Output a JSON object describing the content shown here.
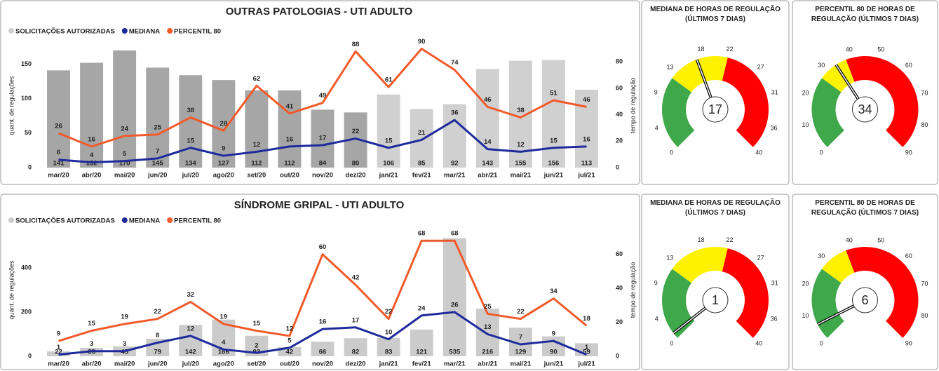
{
  "chart_data": [
    {
      "type": "combo",
      "title": "OUTRAS PATOLOGIAS - UTI ADULTO",
      "y_label": "quant. de regulações",
      "y2_label": "tempo de regulação",
      "categories": [
        "mar/20",
        "abr/20",
        "mai/20",
        "jun/20",
        "jul/20",
        "ago/20",
        "set/20",
        "out/20",
        "nov/20",
        "dez/20",
        "jan/21",
        "fev/21",
        "mar/21",
        "abr/21",
        "mai/21",
        "jun/21",
        "jul/21"
      ],
      "ylim": [
        0,
        180
      ],
      "yticks": [
        0,
        50,
        100,
        150
      ],
      "y2lim": [
        0,
        94
      ],
      "y2ticks": [
        0,
        20,
        40,
        60,
        80
      ],
      "series": [
        {
          "name": "SOLICITAÇÕES AUTORIZADAS",
          "type": "bar",
          "color": "#d0d0d0",
          "colors": [
            "#a6a6a6",
            "#a6a6a6",
            "#a6a6a6",
            "#a6a6a6",
            "#a6a6a6",
            "#a6a6a6",
            "#a6a6a6",
            "#a6a6a6",
            "#a6a6a6",
            "#a6a6a6",
            "#d0d0d0",
            "#d0d0d0",
            "#d0d0d0",
            "#d0d0d0",
            "#d0d0d0",
            "#d0d0d0",
            "#d0d0d0"
          ],
          "values": [
            141,
            152,
            170,
            145,
            134,
            127,
            112,
            112,
            84,
            80,
            106,
            85,
            92,
            143,
            155,
            156,
            113
          ]
        },
        {
          "name": "MEDIANA",
          "type": "line",
          "axis": "y2",
          "color": "#1f2a9c",
          "values": [
            6,
            4,
            5,
            7,
            15,
            9,
            12,
            16,
            17,
            22,
            15,
            21,
            36,
            14,
            12,
            15,
            16
          ]
        },
        {
          "name": "PERCENTIL 80",
          "type": "line",
          "axis": "y2",
          "color": "#f15a2b",
          "values": [
            26,
            16,
            24,
            25,
            38,
            28,
            62,
            41,
            49,
            88,
            61,
            90,
            74,
            46,
            38,
            51,
            46
          ]
        }
      ]
    },
    {
      "type": "gauge",
      "title": "MEDIANA DE HORAS DE REGULAÇÃO (ÚLTIMOS 7 DIAS)",
      "lim": [
        0,
        40
      ],
      "ticks": [
        0,
        4,
        9,
        13,
        18,
        22,
        27,
        31,
        36,
        40
      ],
      "value": 17,
      "bands": [
        {
          "to": 12,
          "color": "#3fa84a"
        },
        {
          "to": 22,
          "color": "#fff200"
        },
        {
          "to": 40,
          "color": "#ff0000"
        }
      ]
    },
    {
      "type": "gauge",
      "title": "PERCENTIL 80 DE HORAS DE REGULAÇÃO (ÚLTIMOS 7 DIAS)",
      "lim": [
        0,
        90
      ],
      "ticks": [
        0,
        10,
        20,
        30,
        40,
        50,
        60,
        70,
        80,
        90
      ],
      "value": 34,
      "bands": [
        {
          "to": 27,
          "color": "#3fa84a"
        },
        {
          "to": 38,
          "color": "#fff200"
        },
        {
          "to": 90,
          "color": "#ff0000"
        }
      ]
    },
    {
      "type": "combo",
      "title": "SÍNDROME GRIPAL - UTI ADULTO",
      "y_label": "quant. de regulações",
      "y2_label": "tempo de regulação",
      "categories": [
        "mar/20",
        "abr/20",
        "mai/20",
        "jun/20",
        "jul/20",
        "ago/20",
        "set/20",
        "out/20",
        "nov/20",
        "dez/20",
        "jan/21",
        "fev/21",
        "mar/21",
        "abr/21",
        "mai/21",
        "jun/21",
        "jul/21"
      ],
      "ylim": [
        0,
        600
      ],
      "yticks": [
        0,
        200,
        400
      ],
      "y2lim": [
        0,
        78
      ],
      "y2ticks": [
        0,
        20,
        40,
        60
      ],
      "series": [
        {
          "name": "SOLICITAÇÕES AUTORIZADAS",
          "type": "bar",
          "color": "#cbcbcb",
          "values": [
            22,
            38,
            45,
            79,
            142,
            166,
            93,
            42,
            66,
            82,
            83,
            121,
            535,
            216,
            129,
            90,
            59
          ]
        },
        {
          "name": "MEDIANA",
          "type": "line",
          "axis": "y2",
          "color": "#1f2a9c",
          "values": [
            1,
            3,
            3,
            8,
            12,
            4,
            2,
            5,
            16,
            17,
            10,
            24,
            26,
            13,
            7,
            9,
            1
          ]
        },
        {
          "name": "PERCENTIL 80",
          "type": "line",
          "axis": "y2",
          "color": "#f15a2b",
          "values": [
            9,
            15,
            19,
            22,
            32,
            19,
            15,
            12,
            60,
            42,
            22,
            68,
            68,
            25,
            22,
            34,
            18
          ]
        }
      ]
    },
    {
      "type": "gauge",
      "title": "MEDIANA DE HORAS DE REGULAÇÃO (ÚLTIMOS 7 DIAS)",
      "lim": [
        0,
        40
      ],
      "ticks": [
        0,
        4,
        9,
        13,
        18,
        22,
        27,
        31,
        36,
        40
      ],
      "value": 1,
      "bands": [
        {
          "to": 12,
          "color": "#3fa84a"
        },
        {
          "to": 22,
          "color": "#fff200"
        },
        {
          "to": 40,
          "color": "#ff0000"
        }
      ]
    },
    {
      "type": "gauge",
      "title": "PERCENTIL 80 DE HORAS DE REGULAÇÃO (ÚLTIMOS 7 DIAS)",
      "lim": [
        0,
        90
      ],
      "ticks": [
        0,
        10,
        20,
        30,
        40,
        50,
        60,
        70,
        80,
        90
      ],
      "value": 6,
      "bands": [
        {
          "to": 27,
          "color": "#3fa84a"
        },
        {
          "to": 38,
          "color": "#fff200"
        },
        {
          "to": 90,
          "color": "#ff0000"
        }
      ]
    }
  ]
}
